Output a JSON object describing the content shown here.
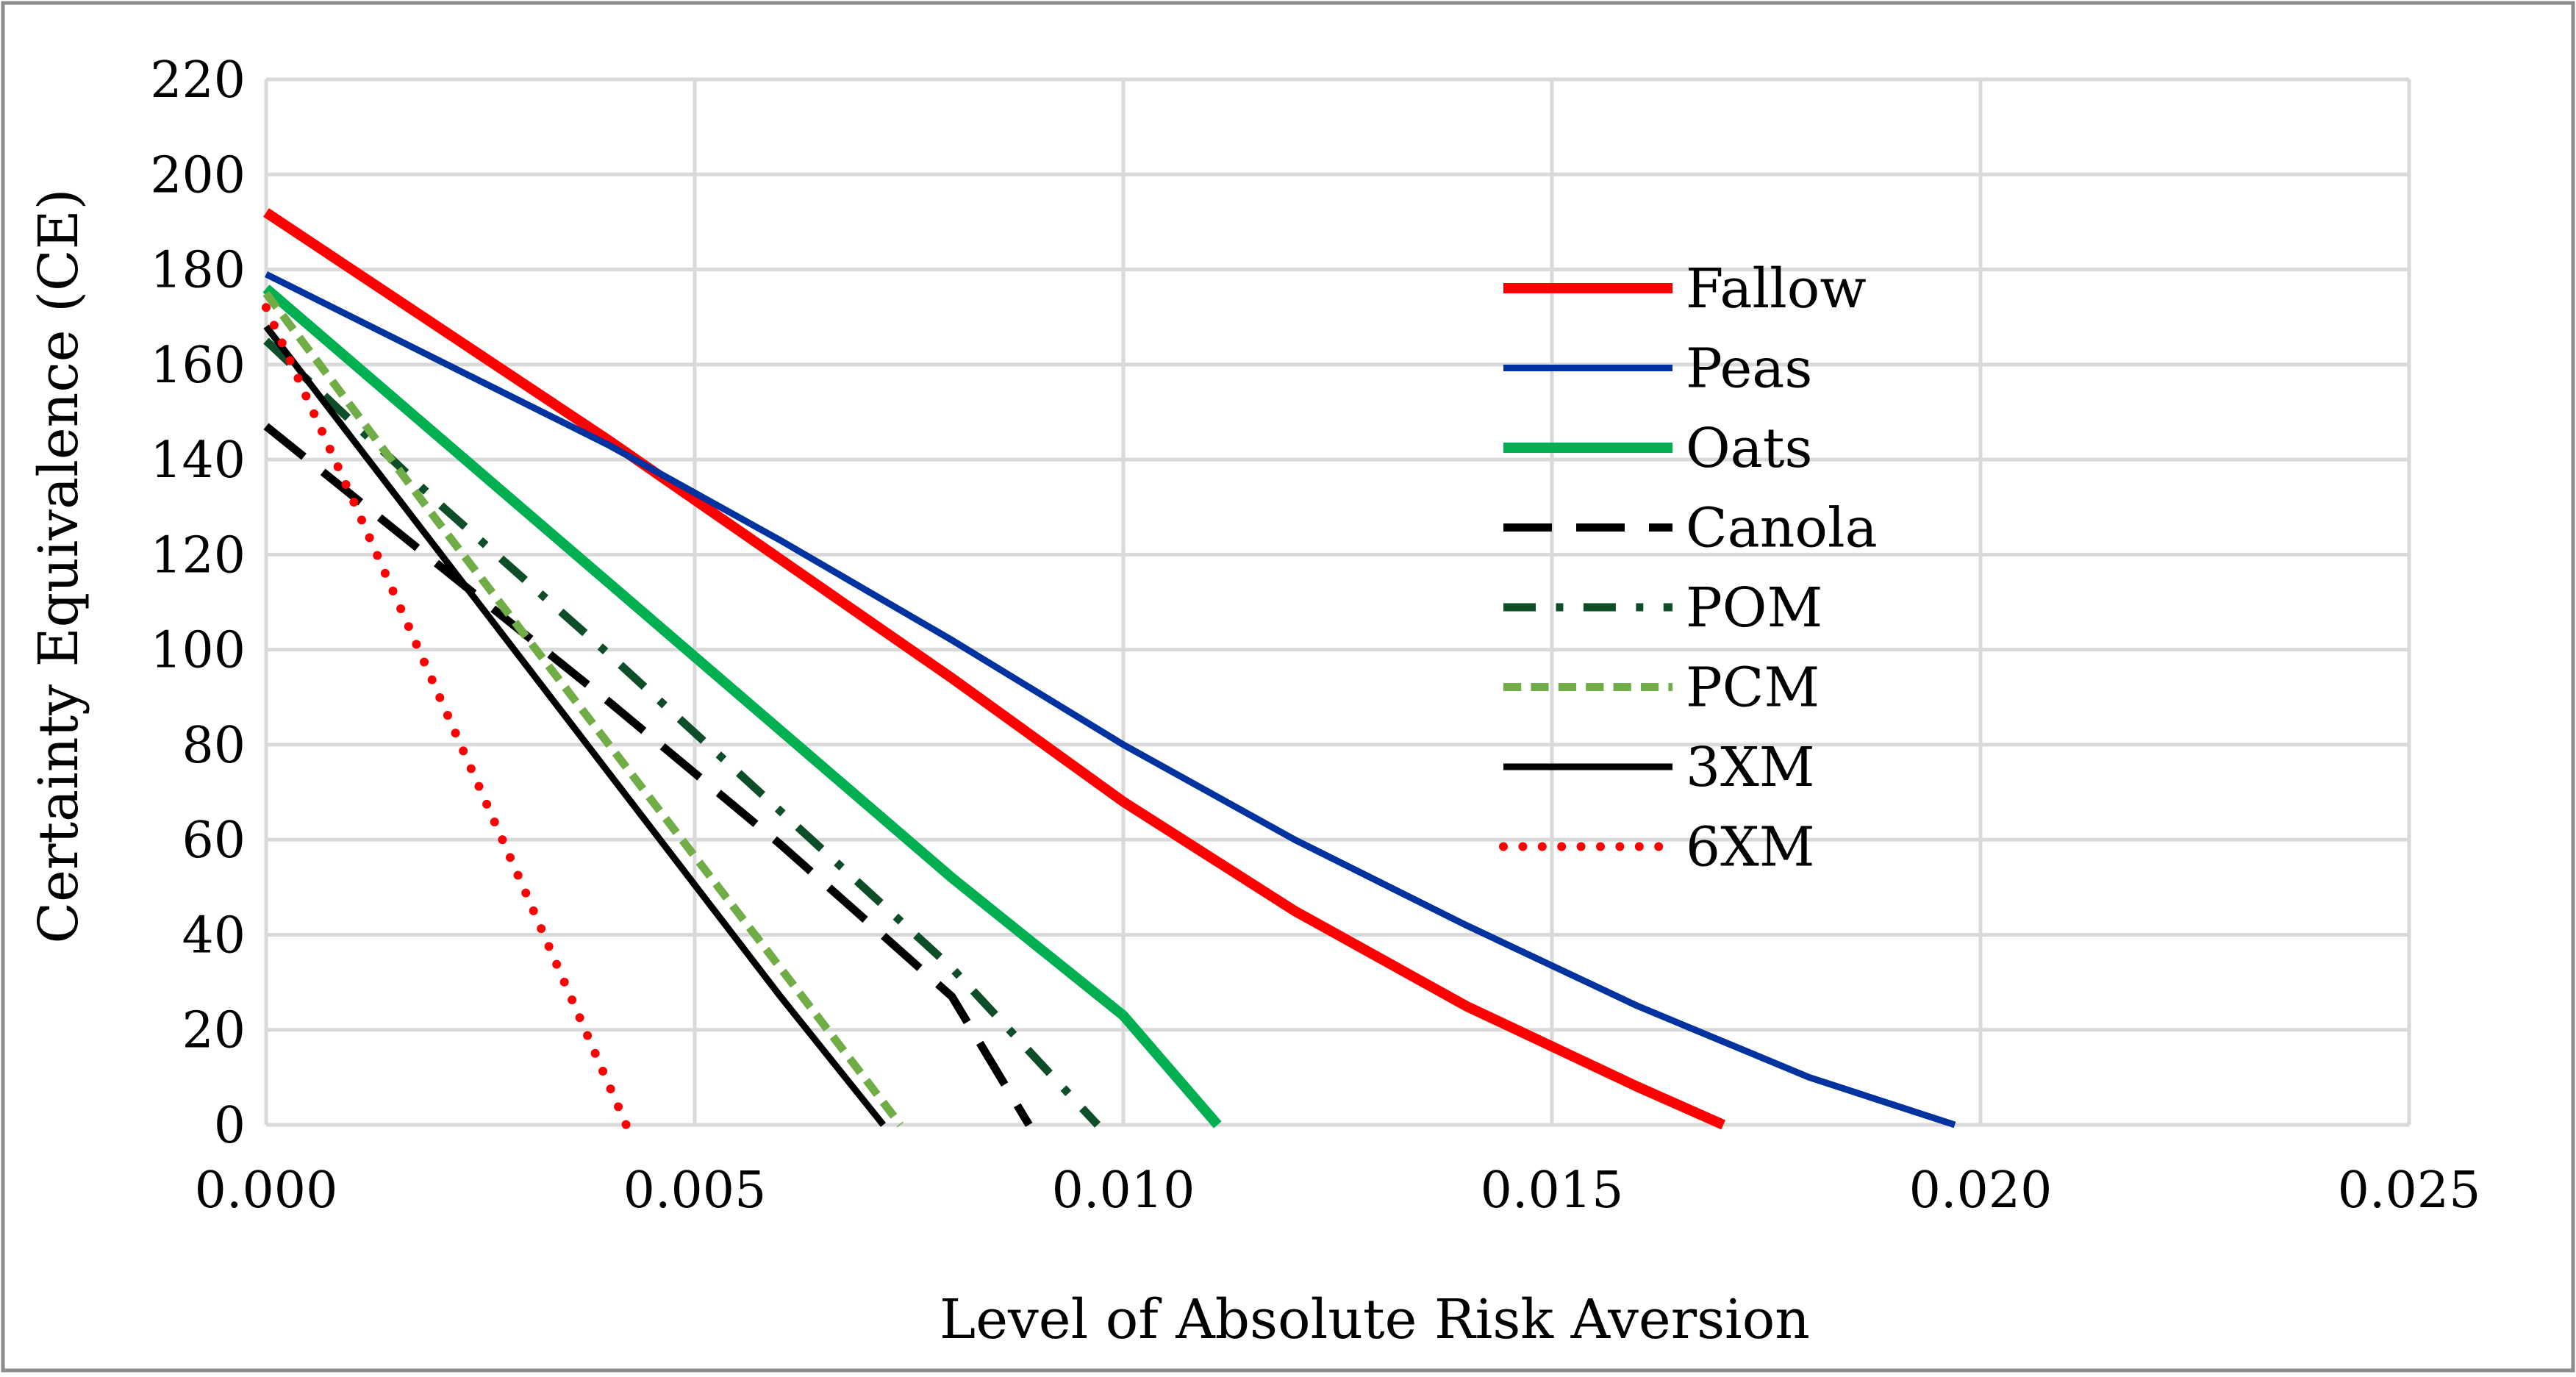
{
  "chart_data": {
    "type": "line",
    "title": "",
    "xlabel": "Level of Absolute Risk Aversion",
    "ylabel": "Certainty Equivalence (CE)",
    "xlim": [
      0,
      0.025
    ],
    "ylim": [
      0,
      220
    ],
    "x_ticks": [
      0,
      0.005,
      0.01,
      0.015,
      0.02,
      0.025
    ],
    "x_tick_labels": [
      "0.000",
      "0.005",
      "0.010",
      "0.015",
      "0.020",
      "0.025"
    ],
    "y_ticks": [
      0,
      20,
      40,
      60,
      80,
      100,
      120,
      140,
      160,
      180,
      200,
      220
    ],
    "y_tick_labels": [
      "0",
      "20",
      "40",
      "60",
      "80",
      "100",
      "120",
      "140",
      "160",
      "180",
      "200",
      "220"
    ],
    "grid": true,
    "legend_position": "right",
    "series": [
      {
        "name": "Fallow",
        "color": "#ff0000",
        "dash": "solid",
        "width": 14,
        "x": [
          0,
          0.002,
          0.004,
          0.006,
          0.008,
          0.01,
          0.012,
          0.014,
          0.016,
          0.017
        ],
        "y": [
          192,
          168,
          144,
          119,
          94,
          68,
          45,
          25,
          8,
          0
        ]
      },
      {
        "name": "Peas",
        "color": "#0033a0",
        "dash": "solid",
        "width": 9,
        "x": [
          0,
          0.002,
          0.004,
          0.006,
          0.008,
          0.01,
          0.012,
          0.014,
          0.016,
          0.018,
          0.0197
        ],
        "y": [
          179,
          161,
          143,
          123,
          102,
          80,
          60,
          42,
          25,
          10,
          0
        ]
      },
      {
        "name": "Oats",
        "color": "#00b050",
        "dash": "solid",
        "width": 14,
        "x": [
          0,
          0.002,
          0.004,
          0.006,
          0.008,
          0.01,
          0.0111
        ],
        "y": [
          176,
          145,
          114,
          83,
          52,
          23,
          0
        ]
      },
      {
        "name": "Canola",
        "color": "#000000",
        "dash": "long-dash",
        "width": 11,
        "x": [
          0,
          0.002,
          0.004,
          0.006,
          0.008,
          0.0089
        ],
        "y": [
          147,
          118,
          89,
          59,
          27,
          0
        ]
      },
      {
        "name": "POM",
        "color": "#0d4d28",
        "dash": "dash-dot",
        "width": 11,
        "x": [
          0,
          0.002,
          0.004,
          0.006,
          0.008,
          0.0097
        ],
        "y": [
          165,
          131,
          99,
          66,
          33,
          0
        ]
      },
      {
        "name": "PCM",
        "color": "#70ad47",
        "dash": "short-dash",
        "width": 11,
        "x": [
          0,
          0.002,
          0.004,
          0.006,
          0.0074
        ],
        "y": [
          175,
          127,
          80,
          33,
          0
        ]
      },
      {
        "name": "3XM",
        "color": "#000000",
        "dash": "solid",
        "width": 9,
        "x": [
          0,
          0.002,
          0.004,
          0.006,
          0.0072
        ],
        "y": [
          168,
          121,
          74,
          27,
          0
        ]
      },
      {
        "name": "6XM",
        "color": "#ff0000",
        "dash": "dotted",
        "width": 12,
        "x": [
          0,
          0.001,
          0.002,
          0.003,
          0.0042
        ],
        "y": [
          172,
          132,
          91,
          50,
          0
        ]
      }
    ]
  }
}
